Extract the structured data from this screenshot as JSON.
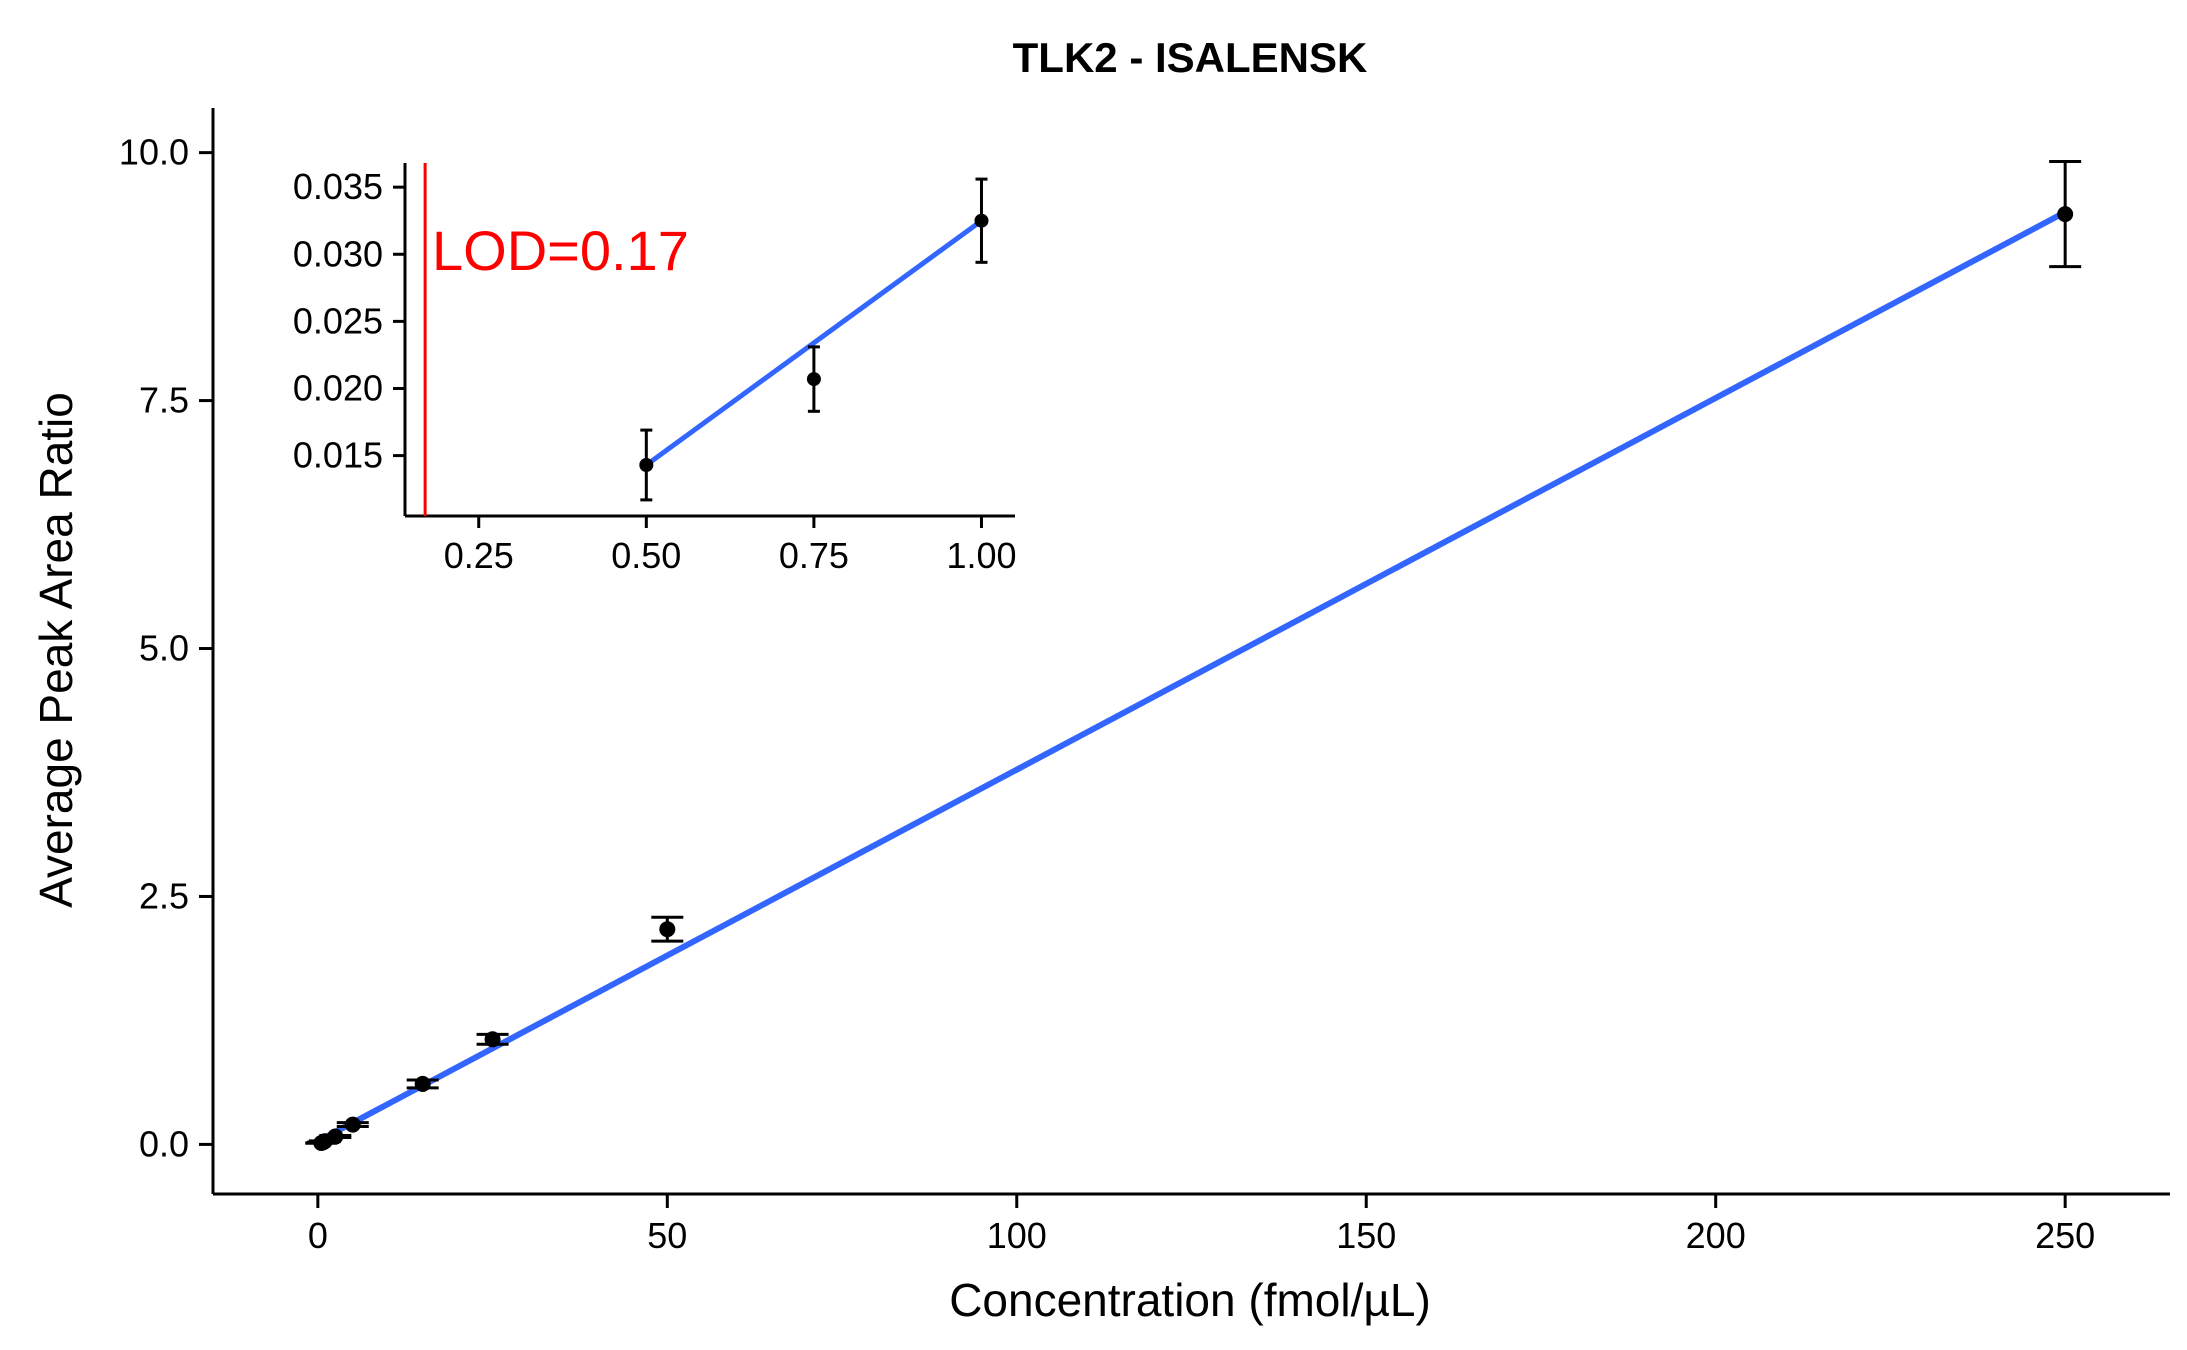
{
  "chart_data": [
    {
      "id": "main",
      "type": "scatter",
      "title": "TLK2 - ISALENSK",
      "xlabel": "Concentration (fmol/µL)",
      "ylabel": "Average Peak Area Ratio",
      "xlim": [
        -15,
        265
      ],
      "ylim": [
        -0.5,
        10.45
      ],
      "x_ticks": [
        0,
        50,
        100,
        150,
        200,
        250
      ],
      "y_ticks": [
        0.0,
        2.5,
        5.0,
        7.5,
        10.0
      ],
      "x_tick_labels": [
        "0",
        "50",
        "100",
        "150",
        "200",
        "250"
      ],
      "y_tick_labels": [
        "0.0",
        "2.5",
        "5.0",
        "7.5",
        "10.0"
      ],
      "grid": false,
      "points": [
        {
          "x": 0.5,
          "y": 0.014,
          "err": 0.002
        },
        {
          "x": 0.75,
          "y": 0.021,
          "err": 0.002
        },
        {
          "x": 1.0,
          "y": 0.032,
          "err": 0.004
        },
        {
          "x": 2.5,
          "y": 0.08,
          "err": 0.01
        },
        {
          "x": 5.0,
          "y": 0.2,
          "err": 0.02
        },
        {
          "x": 15.0,
          "y": 0.61,
          "err": 0.04
        },
        {
          "x": 25.0,
          "y": 1.06,
          "err": 0.05
        },
        {
          "x": 50.0,
          "y": 2.17,
          "err": 0.12
        },
        {
          "x": 250.0,
          "y": 9.38,
          "err": 0.53
        }
      ],
      "fit_line": {
        "x": [
          0.5,
          250
        ],
        "y": [
          0.05,
          9.4
        ],
        "color": "#3366FF"
      }
    },
    {
      "id": "inset",
      "type": "scatter",
      "xlim": [
        0.14,
        1.05
      ],
      "ylim": [
        0.0105,
        0.0368
      ],
      "x_ticks": [
        0.25,
        0.5,
        0.75,
        1.0
      ],
      "y_ticks": [
        0.015,
        0.02,
        0.025,
        0.03,
        0.035
      ],
      "x_tick_labels": [
        "0.25",
        "0.50",
        "0.75",
        "1.00"
      ],
      "y_tick_labels": [
        "0.015",
        "0.020",
        "0.025",
        "0.030",
        "0.035"
      ],
      "grid": false,
      "points": [
        {
          "x": 0.5,
          "y": 0.0143,
          "err": 0.0026
        },
        {
          "x": 0.75,
          "y": 0.0207,
          "err": 0.0024
        },
        {
          "x": 1.0,
          "y": 0.0325,
          "err": 0.0031
        }
      ],
      "fit_line": {
        "x": [
          0.5,
          1.0
        ],
        "y": [
          0.0143,
          0.0325
        ],
        "color": "#3366FF"
      },
      "lod": {
        "value": 0.17,
        "label": "LOD=0.17",
        "color": "#FF0000"
      }
    }
  ]
}
